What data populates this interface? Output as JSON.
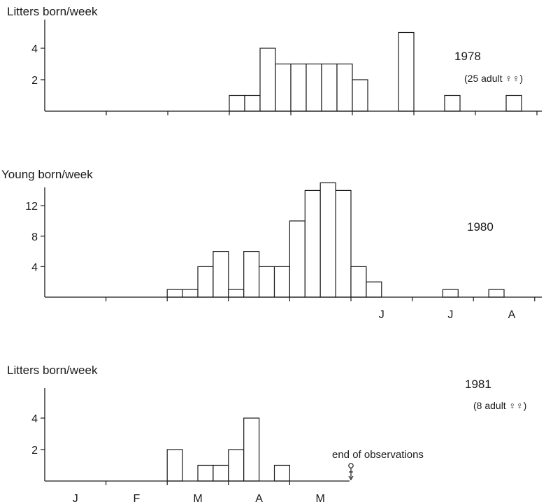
{
  "chart_data": [
    {
      "type": "bar",
      "ylabel": "Litters born/week",
      "year_label": "1978",
      "note": "(25 adult ♀♀)",
      "yticks": [
        2,
        4
      ],
      "ylim": [
        0,
        5
      ],
      "x_week_range": [
        0,
        32
      ],
      "month_labels": [],
      "bars": [
        {
          "week": 12,
          "value": 1
        },
        {
          "week": 13,
          "value": 1
        },
        {
          "week": 14,
          "value": 4
        },
        {
          "week": 15,
          "value": 3
        },
        {
          "week": 16,
          "value": 3
        },
        {
          "week": 17,
          "value": 3
        },
        {
          "week": 18,
          "value": 3
        },
        {
          "week": 19,
          "value": 3
        },
        {
          "week": 20,
          "value": 2
        },
        {
          "week": 21,
          "value": 0
        },
        {
          "week": 22,
          "value": 0
        },
        {
          "week": 23,
          "value": 5
        },
        {
          "week": 26,
          "value": 1
        },
        {
          "week": 30,
          "value": 1
        }
      ]
    },
    {
      "type": "bar",
      "ylabel": "Young born/week",
      "year_label": "1980",
      "note": "",
      "yticks": [
        4,
        8,
        12
      ],
      "ylim": [
        0,
        15
      ],
      "x_week_range": [
        0,
        32
      ],
      "month_labels": [
        {
          "week": 22,
          "label": "J"
        },
        {
          "week": 26.5,
          "label": "J"
        },
        {
          "week": 30.5,
          "label": "A"
        }
      ],
      "bars": [
        {
          "week": 8,
          "value": 1
        },
        {
          "week": 9,
          "value": 1
        },
        {
          "week": 10,
          "value": 4
        },
        {
          "week": 11,
          "value": 6
        },
        {
          "week": 12,
          "value": 1
        },
        {
          "week": 13,
          "value": 6
        },
        {
          "week": 14,
          "value": 4
        },
        {
          "week": 15,
          "value": 4
        },
        {
          "week": 16,
          "value": 10
        },
        {
          "week": 17,
          "value": 14
        },
        {
          "week": 18,
          "value": 15
        },
        {
          "week": 19,
          "value": 14
        },
        {
          "week": 20,
          "value": 4
        },
        {
          "week": 21,
          "value": 2
        },
        {
          "week": 26,
          "value": 1
        },
        {
          "week": 29,
          "value": 1
        }
      ]
    },
    {
      "type": "bar",
      "ylabel": "Litters born/week",
      "year_label": "1981",
      "note": "(8 adult ♀♀)",
      "yticks": [
        2,
        4
      ],
      "ylim": [
        0,
        5
      ],
      "x_week_range": [
        0,
        20
      ],
      "month_labels": [
        {
          "week": 2,
          "label": "J"
        },
        {
          "week": 6,
          "label": "F"
        },
        {
          "week": 10,
          "label": "M"
        },
        {
          "week": 14,
          "label": "A"
        },
        {
          "week": 18,
          "label": "M"
        }
      ],
      "annotation": "end of observations",
      "annotation_week": 20,
      "bars": [
        {
          "week": 8,
          "value": 2
        },
        {
          "week": 10,
          "value": 1
        },
        {
          "week": 11,
          "value": 1
        },
        {
          "week": 12,
          "value": 2
        },
        {
          "week": 13,
          "value": 4
        },
        {
          "week": 15,
          "value": 1
        }
      ]
    }
  ]
}
